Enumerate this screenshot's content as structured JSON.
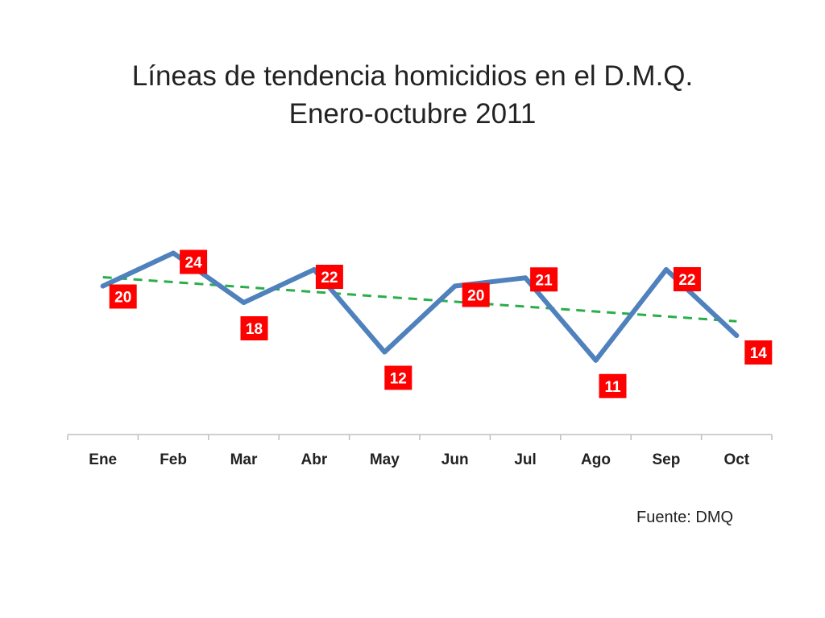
{
  "colors": {
    "line": "#4f81bd",
    "trend": "#2aad4b",
    "label_bg": "#ff0000",
    "axis": "#bfbfbf"
  },
  "source": "Fuente: DMQ",
  "chart_data": {
    "type": "line",
    "title": [
      "Líneas de tendencia homicidios en el D.M.Q.",
      "Enero-octubre 2011"
    ],
    "categories": [
      "Ene",
      "Feb",
      "Mar",
      "Abr",
      "May",
      "Jun",
      "Jul",
      "Ago",
      "Sep",
      "Oct"
    ],
    "series": [
      {
        "values": [
          20,
          24,
          18,
          22,
          12,
          20,
          21,
          11,
          22,
          14
        ],
        "data_labels": true
      }
    ],
    "trendline": {
      "type": "linear",
      "style": "dashed"
    },
    "ylim": [
      0,
      30
    ],
    "y_axis_visible": false,
    "grid": false,
    "legend": "none"
  }
}
